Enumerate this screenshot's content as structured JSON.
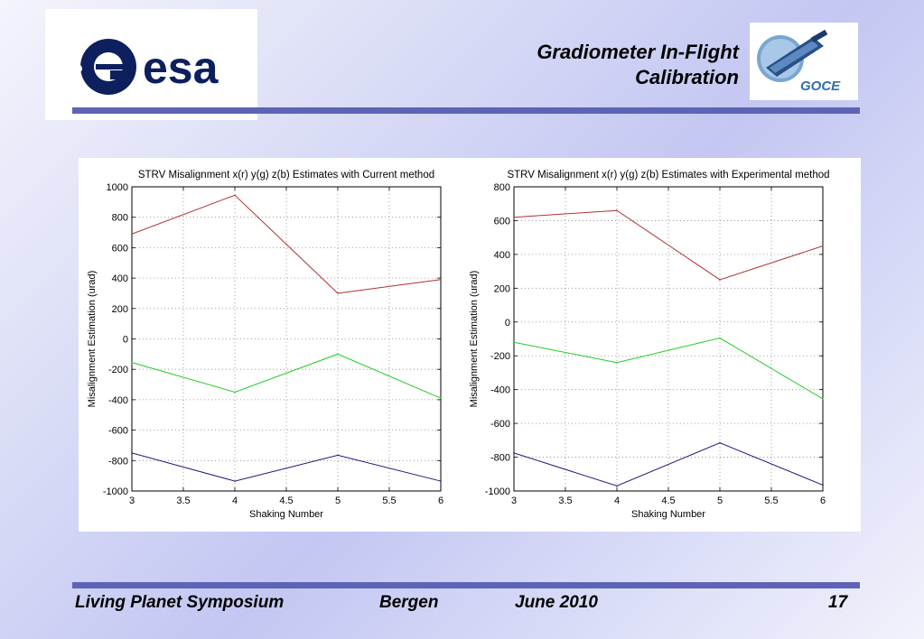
{
  "header": {
    "title_line1": "Gradiometer In-Flight",
    "title_line2": "Calibration",
    "esa_logo_text": "esa",
    "goce_logo_text": "GOCE",
    "colors": {
      "accent_bar": "#5d63b6",
      "esa_blue": "#0d1f5c"
    }
  },
  "footer": {
    "event": "Living Planet Symposium",
    "location": "Bergen",
    "date": "June 2010",
    "page": "17"
  },
  "chart_data": [
    {
      "type": "line",
      "title": "STRV Misalignment x(r) y(g) z(b) Estimates with Current method",
      "xlabel": "Shaking Number",
      "ylabel": "Misalignment Estimation (urad)",
      "xlim": [
        3,
        6
      ],
      "ylim": [
        -1000,
        1000
      ],
      "xticks": [
        "3",
        "3.5",
        "4",
        "4.5",
        "5",
        "5.5",
        "6"
      ],
      "yticks": [
        "1000",
        "800",
        "600",
        "400",
        "200",
        "0",
        "-200",
        "-400",
        "-600",
        "-800",
        "-1000"
      ],
      "grid": true,
      "x": [
        3,
        4,
        5,
        6
      ],
      "series": [
        {
          "color": "#b03030",
          "values": [
            690,
            945,
            300,
            390
          ]
        },
        {
          "color": "#22cc22",
          "values": [
            -155,
            -350,
            -100,
            -390
          ]
        },
        {
          "color": "#1a1a80",
          "values": [
            -750,
            -935,
            -765,
            -935
          ]
        }
      ]
    },
    {
      "type": "line",
      "title": "STRV Misalignment x(r) y(g) z(b) Estimates with Experimental method",
      "xlabel": "Shaking Number",
      "ylabel": "Misalignment Estimation (urad)",
      "xlim": [
        3,
        6
      ],
      "ylim": [
        -1000,
        800
      ],
      "xticks": [
        "3",
        "3.5",
        "4",
        "4.5",
        "5",
        "5.5",
        "6"
      ],
      "yticks": [
        "800",
        "600",
        "400",
        "200",
        "0",
        "-200",
        "-400",
        "-600",
        "-800",
        "-1000"
      ],
      "grid": true,
      "x": [
        3,
        4,
        5,
        6
      ],
      "series": [
        {
          "color": "#b03030",
          "values": [
            620,
            660,
            250,
            450
          ]
        },
        {
          "color": "#22cc22",
          "values": [
            -120,
            -240,
            -95,
            -455
          ]
        },
        {
          "color": "#1a1a80",
          "values": [
            -775,
            -970,
            -715,
            -965
          ]
        }
      ]
    }
  ]
}
